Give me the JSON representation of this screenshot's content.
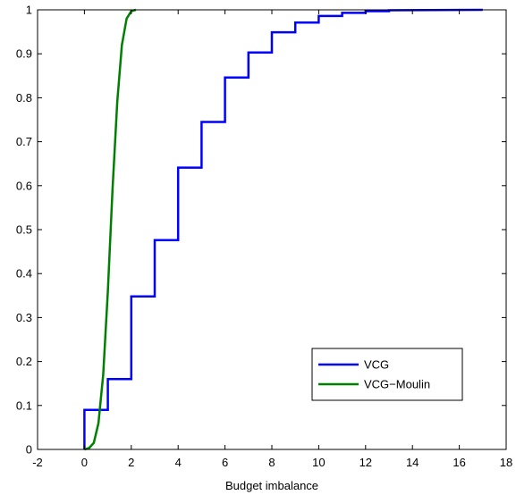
{
  "chart_data": {
    "type": "line",
    "xlabel": "Budget imbalance",
    "ylabel": "",
    "xlim": [
      -2,
      18
    ],
    "ylim": [
      0,
      1
    ],
    "xticks": [
      "-2",
      "0",
      "2",
      "4",
      "6",
      "8",
      "10",
      "12",
      "14",
      "16",
      "18"
    ],
    "yticks": [
      "0",
      "0.1",
      "0.2",
      "0.3",
      "0.4",
      "0.5",
      "0.6",
      "0.7",
      "0.8",
      "0.9",
      "1"
    ],
    "grid": false,
    "legend_position": "bottom-right",
    "series": [
      {
        "name": "VCG",
        "color": "#0000ff",
        "style": "step",
        "x": [
          0,
          0,
          1,
          1,
          2,
          2,
          3,
          3,
          4,
          4,
          5,
          5,
          6,
          6,
          7,
          7,
          8,
          8,
          9,
          9,
          10,
          10,
          11,
          11,
          12,
          12,
          13,
          13,
          17
        ],
        "y": [
          0,
          0.09,
          0.09,
          0.16,
          0.16,
          0.348,
          0.348,
          0.476,
          0.476,
          0.641,
          0.641,
          0.745,
          0.745,
          0.846,
          0.846,
          0.903,
          0.903,
          0.949,
          0.949,
          0.971,
          0.971,
          0.986,
          0.986,
          0.993,
          0.993,
          0.997,
          0.997,
          0.999,
          1.0
        ]
      },
      {
        "name": "VCG−Moulin",
        "color": "#008000",
        "style": "line",
        "x": [
          0,
          0.2,
          0.4,
          0.6,
          0.8,
          1.0,
          1.2,
          1.4,
          1.6,
          1.8,
          2.0,
          2.2
        ],
        "y": [
          0,
          0.003,
          0.015,
          0.06,
          0.17,
          0.36,
          0.59,
          0.79,
          0.92,
          0.98,
          0.997,
          1.0
        ]
      }
    ]
  }
}
